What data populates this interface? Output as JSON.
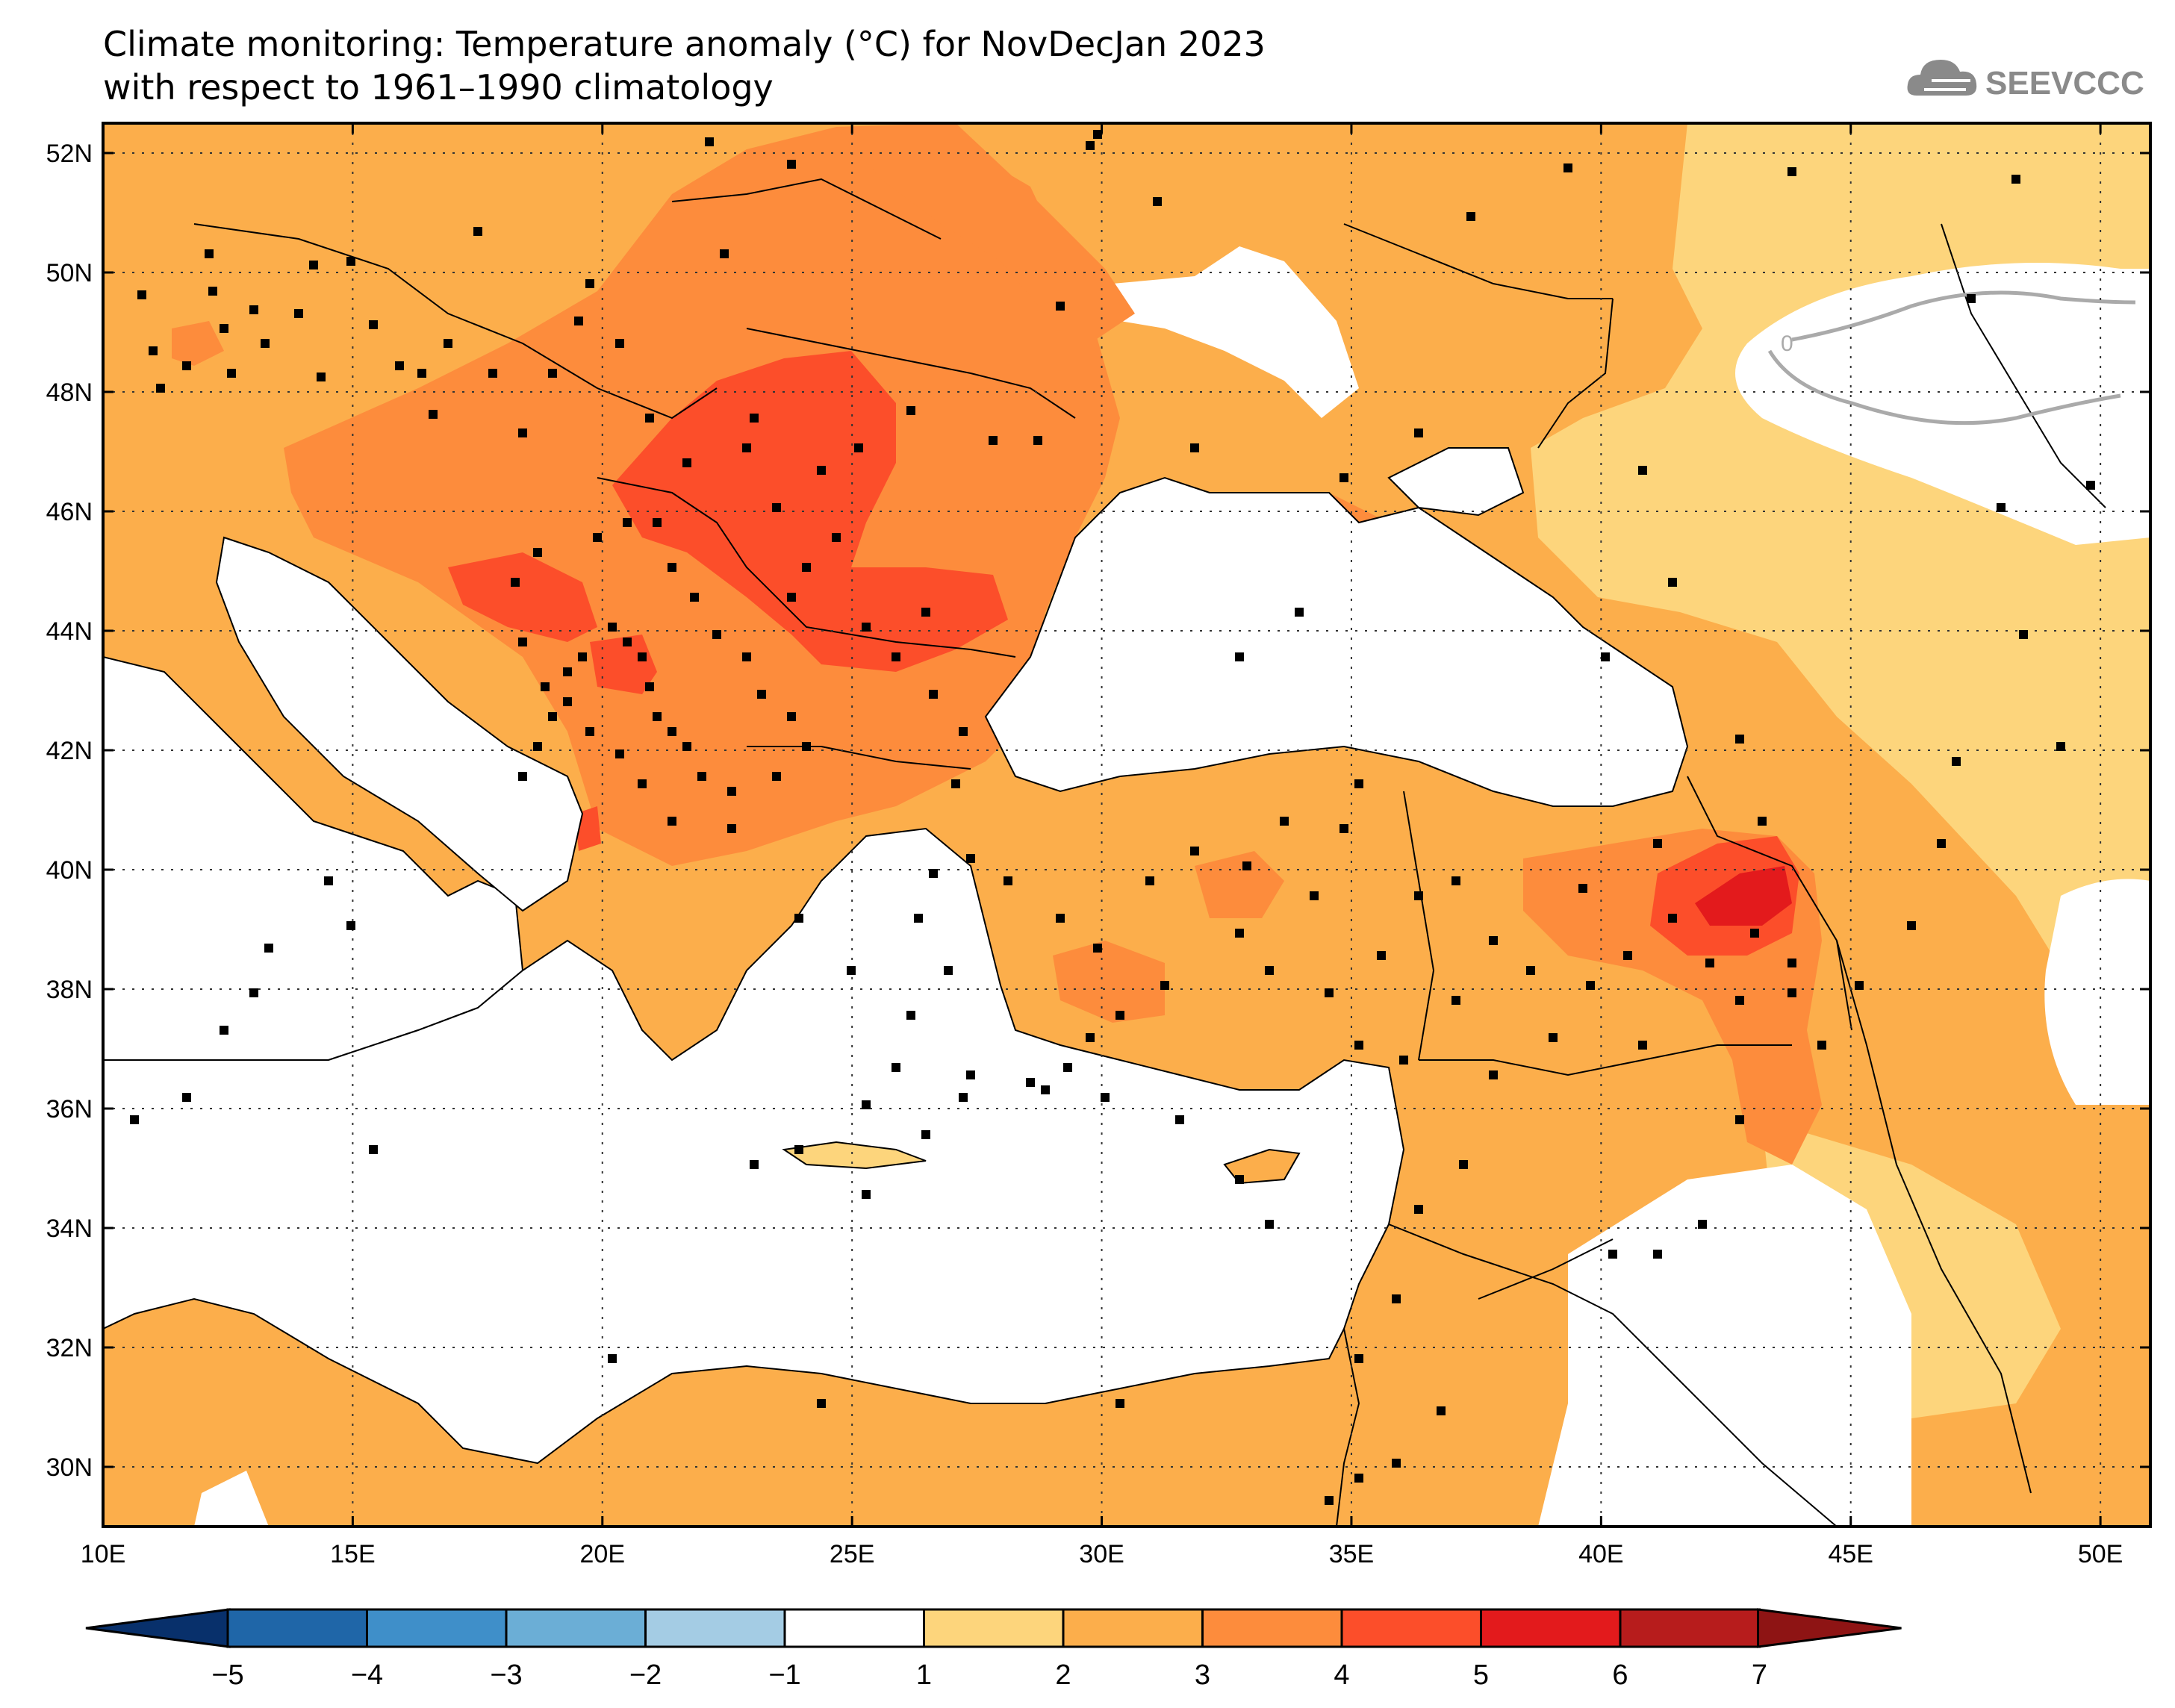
{
  "title": {
    "line1": "Climate monitoring: Temperature anomaly (°C) for NovDecJan 2023",
    "line2": "with respect to 1961–1990 climatology"
  },
  "logo": {
    "text": "SEEVCCC",
    "icon": "cloud-icon"
  },
  "map": {
    "lon_range": [
      10,
      51
    ],
    "lat_range": [
      29,
      52.5
    ],
    "lon_ticks": [
      "10E",
      "15E",
      "20E",
      "25E",
      "30E",
      "35E",
      "40E",
      "45E",
      "50E"
    ],
    "lon_values": [
      10,
      15,
      20,
      25,
      30,
      35,
      40,
      45,
      50
    ],
    "lat_ticks": [
      "52N",
      "50N",
      "48N",
      "46N",
      "44N",
      "42N",
      "40N",
      "38N",
      "36N",
      "34N",
      "32N",
      "30N"
    ],
    "lat_values": [
      52,
      50,
      48,
      46,
      44,
      42,
      40,
      38,
      36,
      34,
      32,
      30
    ],
    "contour_label": "0",
    "colors": {
      "c1_2": "#fdd57c",
      "c2_3": "#fcae4b",
      "c3_4": "#fd8c3c",
      "c4_5": "#fc4e2a",
      "c5_6": "#e31a1c",
      "sea": "#ffffff"
    }
  },
  "colorbar": {
    "labels": [
      "−5",
      "−4",
      "−3",
      "−2",
      "−1",
      "1",
      "2",
      "3",
      "4",
      "5",
      "6",
      "7"
    ],
    "colors": [
      "#08306b",
      "#1f66a8",
      "#3f8fc9",
      "#6baed6",
      "#a4cce4",
      "#ffffff",
      "#fdd57c",
      "#fcae4b",
      "#fd8c3c",
      "#fc4e2a",
      "#e31a1c",
      "#b71c1c",
      "#8e1414"
    ]
  }
}
